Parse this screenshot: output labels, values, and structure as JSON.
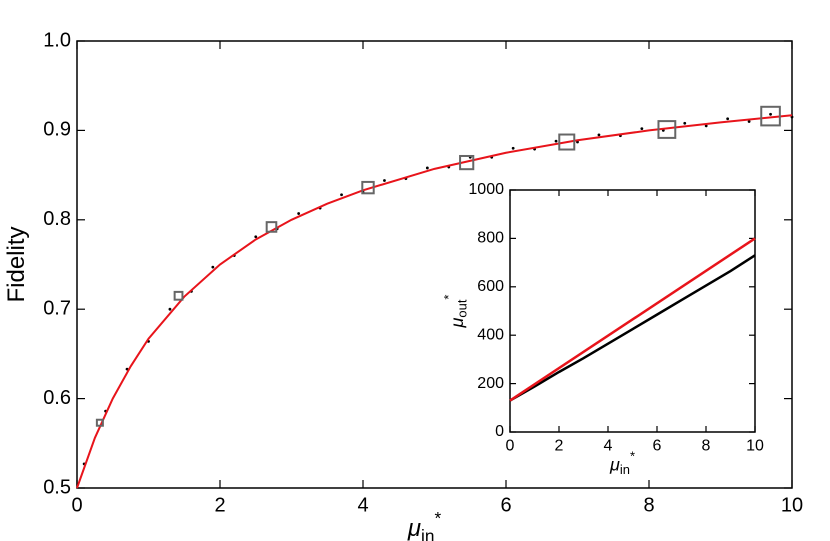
{
  "chart_data": [
    {
      "type": "line",
      "ylabel": "Fidelity",
      "xlabel": {
        "symbol": "μ",
        "sub": "in",
        "sup": "*"
      },
      "xlim": [
        0,
        10
      ],
      "ylim": [
        0.5,
        1.0
      ],
      "xticks": [
        0,
        2,
        4,
        6,
        8,
        10
      ],
      "yticks": [
        0.5,
        0.6,
        0.7,
        0.8,
        0.9,
        {
          "value": 1,
          "label": "1.0"
        }
      ],
      "series": [
        {
          "type": "scatter",
          "color": "#000000",
          "x": [
            0.1,
            0.4,
            0.7,
            1.0,
            1.3,
            1.6,
            1.9,
            2.2,
            2.5,
            2.8,
            3.1,
            3.4,
            3.7,
            4.0,
            4.3,
            4.6,
            4.9,
            5.2,
            5.5,
            5.8,
            6.1,
            6.4,
            6.7,
            7.0,
            7.3,
            7.6,
            7.9,
            8.2,
            8.5,
            8.8,
            9.1,
            9.4,
            9.7,
            10.0
          ],
          "values": [
            0.527,
            0.586,
            0.633,
            0.664,
            0.7,
            0.72,
            0.747,
            0.76,
            0.781,
            0.79,
            0.807,
            0.813,
            0.828,
            0.831,
            0.844,
            0.846,
            0.858,
            0.859,
            0.87,
            0.87,
            0.88,
            0.879,
            0.888,
            0.887,
            0.895,
            0.894,
            0.902,
            0.9,
            0.908,
            0.905,
            0.913,
            0.91,
            0.918,
            0.915
          ]
        },
        {
          "type": "line",
          "color": "#e8141b",
          "x": [
            0,
            0.25,
            0.5,
            0.75,
            1,
            1.5,
            2,
            2.5,
            3,
            3.5,
            4,
            5,
            6,
            7,
            8,
            9,
            10
          ],
          "values": [
            0.5,
            0.556,
            0.6,
            0.636,
            0.667,
            0.714,
            0.75,
            0.778,
            0.8,
            0.818,
            0.833,
            0.857,
            0.875,
            0.889,
            0.9,
            0.909,
            0.917
          ]
        },
        {
          "type": "square",
          "color": "#666666",
          "x": [
            0.32,
            1.42,
            2.72,
            4.07,
            5.45,
            6.85,
            8.25,
            9.7
          ],
          "values": [
            0.573,
            0.715,
            0.792,
            0.836,
            0.864,
            0.887,
            0.901,
            0.916
          ]
        }
      ]
    },
    {
      "type": "line",
      "ylabel": {
        "symbol": "μ",
        "sub": "out",
        "sup": "*"
      },
      "xlabel": {
        "symbol": "μ",
        "sub": "in",
        "sup": "*"
      },
      "xlim": [
        0,
        10
      ],
      "ylim": [
        0,
        1000
      ],
      "xticks": [
        0,
        2,
        4,
        6,
        8,
        10
      ],
      "yticks": [
        0,
        200,
        400,
        600,
        800,
        1000
      ],
      "series": [
        {
          "type": "line",
          "color": "#000000",
          "x": [
            0,
            1,
            2,
            3,
            4,
            5,
            6,
            7,
            8,
            9,
            10
          ],
          "values": [
            130,
            188,
            248,
            305,
            365,
            425,
            485,
            545,
            605,
            665,
            730
          ]
        },
        {
          "type": "line",
          "color": "#e8141b",
          "x": [
            0,
            10
          ],
          "values": [
            130,
            800
          ]
        }
      ]
    }
  ]
}
